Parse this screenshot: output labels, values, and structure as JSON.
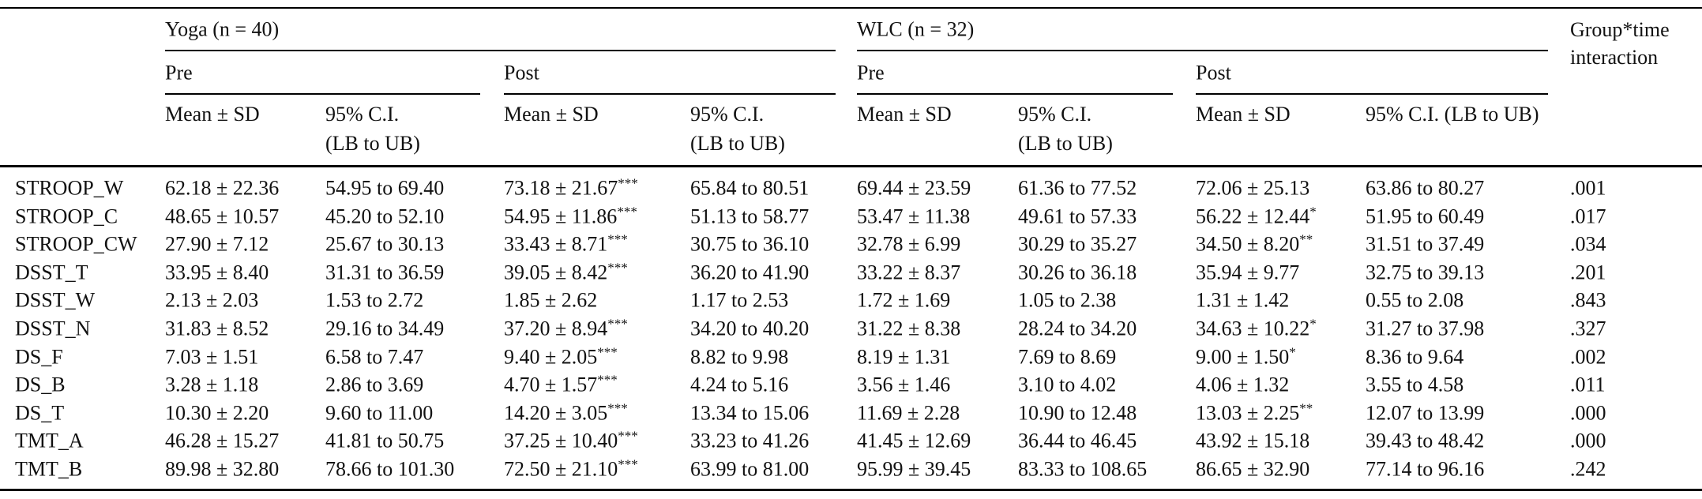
{
  "header": {
    "groups": [
      {
        "label": "Yoga (n = 40)",
        "times": [
          "Pre",
          "Post"
        ]
      },
      {
        "label": "WLC (n = 32)",
        "times": [
          "Pre",
          "Post"
        ]
      }
    ],
    "interaction": "Group*time\ninteraction",
    "columns": [
      "Mean ± SD",
      "95% C.I.\n(LB to UB)",
      "Mean ± SD",
      "95% C.I.\n(LB to UB)",
      "Mean ± SD",
      "95% C.I.\n(LB to UB)",
      "Mean ± SD",
      "95% C.I. (LB to UB)"
    ]
  },
  "rows": [
    {
      "label": "STROOP_W",
      "cells": [
        "62.18 ± 22.36",
        "54.95 to 69.40",
        {
          "text": "73.18 ± 21.67",
          "sig": "***"
        },
        "65.84 to 80.51",
        "69.44 ± 23.59",
        "61.36 to 77.52",
        "72.06 ± 25.13",
        "63.86 to 80.27"
      ],
      "interaction": ".001"
    },
    {
      "label": "STROOP_C",
      "cells": [
        "48.65 ± 10.57",
        "45.20 to 52.10",
        {
          "text": "54.95 ± 11.86",
          "sig": "***"
        },
        "51.13 to 58.77",
        "53.47 ± 11.38",
        "49.61 to 57.33",
        {
          "text": "56.22 ± 12.44",
          "sig": "*"
        },
        "51.95 to 60.49"
      ],
      "interaction": ".017"
    },
    {
      "label": "STROOP_CW",
      "cells": [
        "27.90 ± 7.12",
        "25.67 to 30.13",
        {
          "text": "33.43 ± 8.71",
          "sig": "***"
        },
        "30.75 to 36.10",
        "32.78 ± 6.99",
        "30.29 to 35.27",
        {
          "text": "34.50 ± 8.20",
          "sig": "**"
        },
        "31.51 to 37.49"
      ],
      "interaction": ".034"
    },
    {
      "label": "DSST_T",
      "cells": [
        "33.95 ± 8.40",
        "31.31 to 36.59",
        {
          "text": "39.05 ± 8.42",
          "sig": "***"
        },
        "36.20 to 41.90",
        "33.22 ± 8.37",
        "30.26 to 36.18",
        "35.94 ± 9.77",
        "32.75 to 39.13"
      ],
      "interaction": ".201"
    },
    {
      "label": "DSST_W",
      "cells": [
        "2.13 ± 2.03",
        "1.53 to 2.72",
        "1.85 ± 2.62",
        "1.17 to 2.53",
        "1.72 ± 1.69",
        "1.05 to 2.38",
        "1.31 ± 1.42",
        "0.55 to 2.08"
      ],
      "interaction": ".843"
    },
    {
      "label": "DSST_N",
      "cells": [
        "31.83 ± 8.52",
        "29.16 to 34.49",
        {
          "text": "37.20 ± 8.94",
          "sig": "***"
        },
        "34.20 to 40.20",
        "31.22 ± 8.38",
        "28.24 to 34.20",
        {
          "text": "34.63 ± 10.22",
          "sig": "*"
        },
        "31.27 to 37.98"
      ],
      "interaction": ".327"
    },
    {
      "label": "DS_F",
      "cells": [
        "7.03 ± 1.51",
        "6.58 to 7.47",
        {
          "text": "9.40 ± 2.05",
          "sig": "***"
        },
        "8.82 to 9.98",
        "8.19 ± 1.31",
        "7.69 to 8.69",
        {
          "text": "9.00 ± 1.50",
          "sig": "*"
        },
        "8.36 to 9.64"
      ],
      "interaction": ".002"
    },
    {
      "label": "DS_B",
      "cells": [
        "3.28 ± 1.18",
        "2.86 to 3.69",
        {
          "text": "4.70 ± 1.57",
          "sig": "***"
        },
        "4.24 to 5.16",
        "3.56 ± 1.46",
        "3.10 to 4.02",
        "4.06 ± 1.32",
        "3.55 to 4.58"
      ],
      "interaction": ".011"
    },
    {
      "label": "DS_T",
      "cells": [
        "10.30 ± 2.20",
        "9.60 to 11.00",
        {
          "text": "14.20 ± 3.05",
          "sig": "***"
        },
        "13.34 to 15.06",
        "11.69 ± 2.28",
        "10.90 to 12.48",
        {
          "text": "13.03 ± 2.25",
          "sig": "**"
        },
        "12.07 to 13.99"
      ],
      "interaction": ".000"
    },
    {
      "label": "TMT_A",
      "cells": [
        "46.28 ± 15.27",
        "41.81 to 50.75",
        {
          "text": "37.25 ± 10.40",
          "sig": "***"
        },
        "33.23 to 41.26",
        "41.45 ± 12.69",
        "36.44 to 46.45",
        "43.92 ± 15.18",
        "39.43 to 48.42"
      ],
      "interaction": ".000"
    },
    {
      "label": "TMT_B",
      "cells": [
        "89.98 ± 32.80",
        "78.66 to 101.30",
        {
          "text": "72.50 ± 21.10",
          "sig": "***"
        },
        "63.99 to 81.00",
        "95.99 ± 39.45",
        "83.33 to 108.65",
        "86.65 ± 32.90",
        "77.14 to 96.16"
      ],
      "interaction": ".242"
    }
  ]
}
